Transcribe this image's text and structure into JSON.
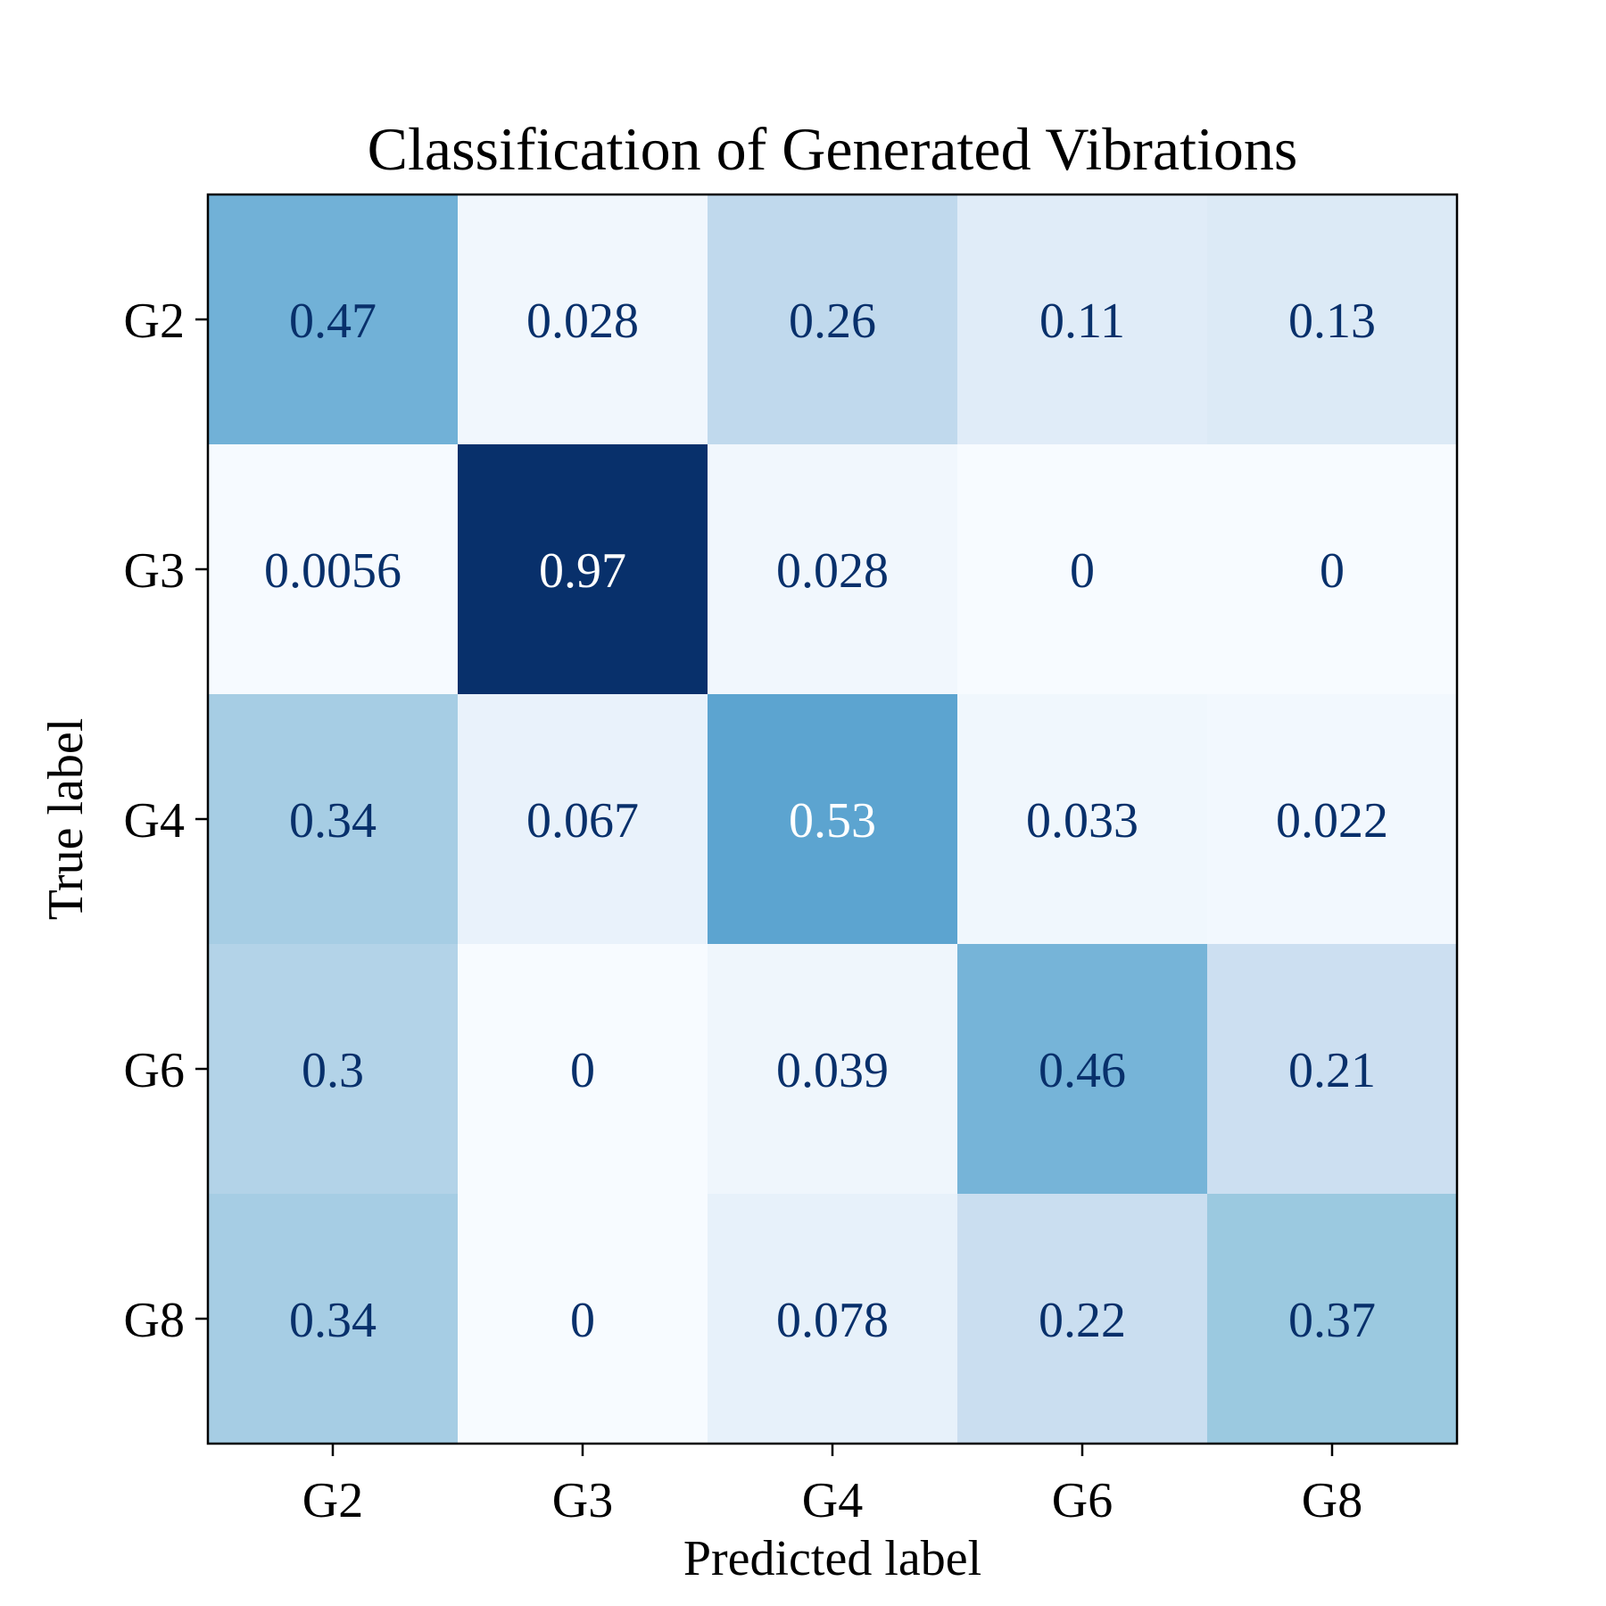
{
  "chart_data": {
    "type": "heatmap",
    "title": "Classification of Generated Vibrations",
    "xlabel": "Predicted label",
    "ylabel": "True label",
    "x_categories": [
      "G2",
      "G3",
      "G4",
      "G6",
      "G8"
    ],
    "y_categories": [
      "G2",
      "G3",
      "G4",
      "G6",
      "G8"
    ],
    "values": [
      [
        0.47,
        0.028,
        0.26,
        0.11,
        0.13
      ],
      [
        0.0056,
        0.97,
        0.028,
        0,
        0
      ],
      [
        0.34,
        0.067,
        0.53,
        0.033,
        0.022
      ],
      [
        0.3,
        0,
        0.039,
        0.46,
        0.21
      ],
      [
        0.34,
        0,
        0.078,
        0.22,
        0.37
      ]
    ],
    "value_labels": [
      [
        "0.47",
        "0.028",
        "0.26",
        "0.11",
        "0.13"
      ],
      [
        "0.0056",
        "0.97",
        "0.028",
        "0",
        "0"
      ],
      [
        "0.34",
        "0.067",
        "0.53",
        "0.033",
        "0.022"
      ],
      [
        "0.3",
        "0",
        "0.039",
        "0.46",
        "0.21"
      ],
      [
        "0.34",
        "0",
        "0.078",
        "0.22",
        "0.37"
      ]
    ],
    "color_range": [
      0,
      0.97
    ],
    "colormap": "Blues",
    "grid": false,
    "colors": {
      "dark_text": "#08306b",
      "light_text": "#ffffff"
    }
  }
}
